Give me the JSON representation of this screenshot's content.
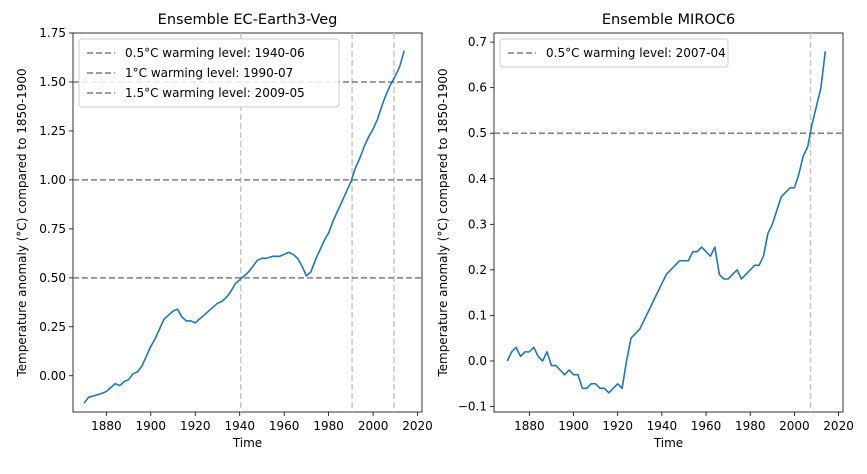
{
  "chart_data": [
    {
      "type": "line",
      "title": "Ensemble EC-Earth3-Veg",
      "xlabel": "Time",
      "ylabel": "Temperature anomaly (°C) compared to 1850-1900",
      "xlim": [
        1865,
        2022
      ],
      "ylim": [
        -0.185,
        1.75
      ],
      "xticks": [
        1880,
        1900,
        1920,
        1940,
        1960,
        1980,
        2000,
        2020
      ],
      "xtick_labels": [
        "1880",
        "1900",
        "1920",
        "1940",
        "1960",
        "1980",
        "2000",
        "2020"
      ],
      "yticks": [
        0.0,
        0.25,
        0.5,
        0.75,
        1.0,
        1.25,
        1.5,
        1.75
      ],
      "ytick_labels": [
        "0.00",
        "0.25",
        "0.50",
        "0.75",
        "1.00",
        "1.25",
        "1.50",
        "1.75"
      ],
      "series": [
        {
          "name": "temperature anomaly",
          "color": "#1f77b4",
          "x": [
            1870,
            1872,
            1875,
            1878,
            1880,
            1882,
            1884,
            1886,
            1888,
            1890,
            1892,
            1894,
            1896,
            1898,
            1900,
            1902,
            1904,
            1906,
            1908,
            1910,
            1912,
            1914,
            1916,
            1918,
            1920,
            1922,
            1924,
            1926,
            1928,
            1930,
            1932,
            1934,
            1936,
            1938,
            1940,
            1942,
            1944,
            1946,
            1948,
            1950,
            1952,
            1955,
            1958,
            1960,
            1962,
            1964,
            1966,
            1968,
            1970,
            1972,
            1974,
            1976,
            1978,
            1980,
            1982,
            1984,
            1986,
            1988,
            1990,
            1992,
            1994,
            1996,
            1998,
            2000,
            2002,
            2004,
            2006,
            2008,
            2010,
            2012,
            2014
          ],
          "y": [
            -0.14,
            -0.11,
            -0.1,
            -0.09,
            -0.08,
            -0.06,
            -0.04,
            -0.05,
            -0.03,
            -0.02,
            0.01,
            0.02,
            0.05,
            0.1,
            0.15,
            0.19,
            0.24,
            0.29,
            0.31,
            0.33,
            0.34,
            0.3,
            0.28,
            0.28,
            0.27,
            0.29,
            0.31,
            0.33,
            0.35,
            0.37,
            0.38,
            0.4,
            0.43,
            0.47,
            0.49,
            0.51,
            0.53,
            0.56,
            0.59,
            0.6,
            0.6,
            0.61,
            0.61,
            0.62,
            0.63,
            0.62,
            0.6,
            0.56,
            0.51,
            0.53,
            0.59,
            0.64,
            0.69,
            0.73,
            0.79,
            0.84,
            0.89,
            0.94,
            0.99,
            1.06,
            1.11,
            1.17,
            1.22,
            1.26,
            1.31,
            1.38,
            1.44,
            1.49,
            1.53,
            1.58,
            1.66
          ]
        }
      ],
      "hlines": [
        {
          "y": 0.5,
          "label": "0.5°C warming level: 1940-06"
        },
        {
          "y": 1.0,
          "label": "1°C warming level: 1990-07"
        },
        {
          "y": 1.5,
          "label": "1.5°C warming level: 2009-05"
        }
      ],
      "vlines": [
        1940.45,
        1990.55,
        2009.4
      ],
      "legend_position": "upper-left"
    },
    {
      "type": "line",
      "title": "Ensemble MIROC6",
      "xlabel": "Time",
      "ylabel": "Temperature anomaly (°C) compared to 1850-1900",
      "xlim": [
        1864,
        2022
      ],
      "ylim": [
        -0.112,
        0.72
      ],
      "xticks": [
        1880,
        1900,
        1920,
        1940,
        1960,
        1980,
        2000,
        2020
      ],
      "xtick_labels": [
        "1880",
        "1900",
        "1920",
        "1940",
        "1960",
        "1980",
        "2000",
        "2020"
      ],
      "yticks": [
        -0.1,
        0.0,
        0.1,
        0.2,
        0.3,
        0.4,
        0.5,
        0.6,
        0.7
      ],
      "ytick_labels": [
        "−0.1",
        "0.0",
        "0.1",
        "0.2",
        "0.3",
        "0.4",
        "0.5",
        "0.6",
        "0.7"
      ],
      "series": [
        {
          "name": "temperature anomaly",
          "color": "#1f77b4",
          "x": [
            1870,
            1872,
            1874,
            1876,
            1878,
            1880,
            1882,
            1884,
            1886,
            1888,
            1890,
            1892,
            1894,
            1896,
            1898,
            1900,
            1902,
            1904,
            1906,
            1908,
            1910,
            1912,
            1914,
            1916,
            1918,
            1920,
            1922,
            1924,
            1926,
            1928,
            1930,
            1932,
            1934,
            1936,
            1938,
            1940,
            1942,
            1944,
            1946,
            1948,
            1950,
            1952,
            1954,
            1956,
            1958,
            1960,
            1962,
            1964,
            1966,
            1968,
            1970,
            1972,
            1974,
            1976,
            1978,
            1980,
            1982,
            1984,
            1986,
            1988,
            1990,
            1992,
            1994,
            1996,
            1998,
            2000,
            2002,
            2004,
            2006,
            2008,
            2010,
            2012,
            2014
          ],
          "y": [
            0.0,
            0.02,
            0.03,
            0.01,
            0.02,
            0.02,
            0.03,
            0.01,
            0.0,
            0.02,
            -0.01,
            -0.01,
            -0.02,
            -0.03,
            -0.02,
            -0.03,
            -0.03,
            -0.06,
            -0.06,
            -0.05,
            -0.05,
            -0.06,
            -0.06,
            -0.07,
            -0.06,
            -0.05,
            -0.06,
            0.0,
            0.05,
            0.06,
            0.07,
            0.09,
            0.11,
            0.13,
            0.15,
            0.17,
            0.19,
            0.2,
            0.21,
            0.22,
            0.22,
            0.22,
            0.24,
            0.24,
            0.25,
            0.24,
            0.23,
            0.25,
            0.19,
            0.18,
            0.18,
            0.19,
            0.2,
            0.18,
            0.19,
            0.2,
            0.21,
            0.21,
            0.23,
            0.28,
            0.3,
            0.33,
            0.36,
            0.37,
            0.38,
            0.38,
            0.41,
            0.45,
            0.47,
            0.52,
            0.56,
            0.6,
            0.68
          ]
        }
      ],
      "hlines": [
        {
          "y": 0.5,
          "label": "0.5°C warming level: 2007-04"
        }
      ],
      "vlines": [
        2007.3
      ],
      "legend_position": "upper-left"
    }
  ]
}
